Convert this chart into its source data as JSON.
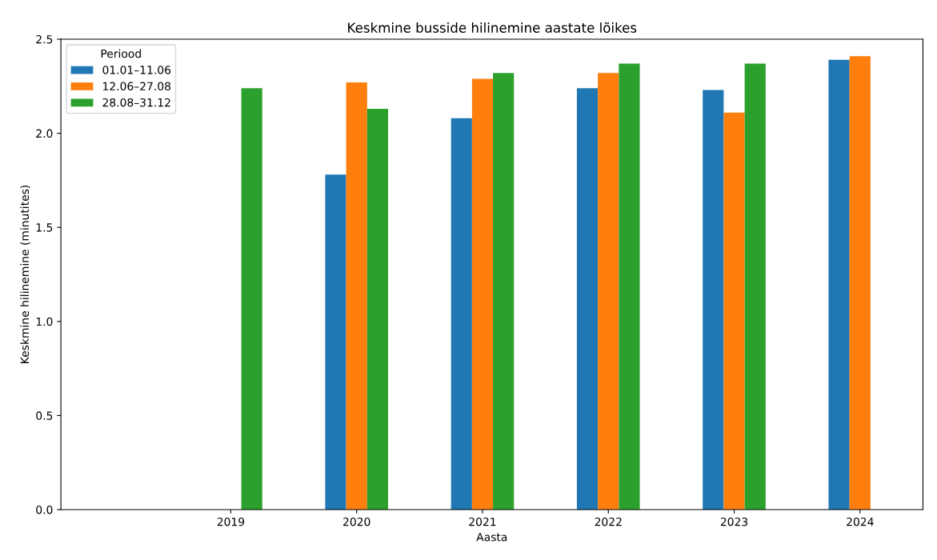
{
  "chart_data": {
    "type": "bar",
    "title": "Keskmine busside hilinemine aastate lõikes",
    "xlabel": "Aasta",
    "ylabel": "Keskmine hilinemine (minutites)",
    "categories": [
      "2019",
      "2020",
      "2021",
      "2022",
      "2023",
      "2024"
    ],
    "series": [
      {
        "name": "01.01–11.06",
        "color": "#1f77b4",
        "values": [
          null,
          1.78,
          2.08,
          2.24,
          2.23,
          2.39
        ]
      },
      {
        "name": "12.06–27.08",
        "color": "#ff7f0e",
        "values": [
          null,
          2.27,
          2.29,
          2.32,
          2.11,
          2.41
        ]
      },
      {
        "name": "28.08–31.12",
        "color": "#2ca02c",
        "values": [
          2.24,
          2.13,
          2.32,
          2.37,
          2.37,
          null
        ]
      }
    ],
    "legend_title": "Periood",
    "legend": "top left",
    "ylim": [
      0,
      2.5
    ],
    "yticks": [
      {
        "value": 0,
        "label": "0.0"
      },
      {
        "value": 0.5,
        "label": "0.5"
      },
      {
        "value": 1,
        "label": "1.0"
      },
      {
        "value": 1.5,
        "label": "1.5"
      },
      {
        "value": 2,
        "label": "2.0"
      },
      {
        "value": 2.5,
        "label": "2.5"
      }
    ]
  }
}
